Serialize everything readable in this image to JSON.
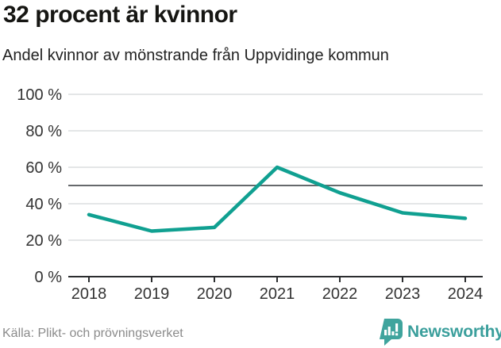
{
  "header": {
    "title": "32 procent är kvinnor",
    "subtitle": "Andel kvinnor av mönstrande från Uppvidinge kommun"
  },
  "chart_data": {
    "type": "line",
    "title": "32 procent är kvinnor",
    "subtitle": "Andel kvinnor av mönstrande från Uppvidinge kommun",
    "categories": [
      "2018",
      "2019",
      "2020",
      "2021",
      "2022",
      "2023",
      "2024"
    ],
    "series": [
      {
        "name": "Andel kvinnor av mönstrande",
        "values": [
          34,
          25,
          27,
          60,
          46,
          35,
          32
        ]
      }
    ],
    "unit": "%",
    "ylim": [
      0,
      100
    ],
    "yticks": [
      0,
      20,
      40,
      60,
      80,
      100
    ],
    "ytick_suffix": " %",
    "reference_line": 50,
    "grid": true,
    "legend": "none",
    "colors": {
      "line": "#10a091",
      "grid": "#dcdedf",
      "reference_line": "#66696c",
      "axis": "#2b2d2f",
      "tick_label": "#333333"
    }
  },
  "footer": {
    "source": "Källa: Plikt- och prövningsverket",
    "brand": "Newsworthy",
    "brand_color": "#3b9f9c",
    "brand_icon_color": "#3fa49d"
  }
}
